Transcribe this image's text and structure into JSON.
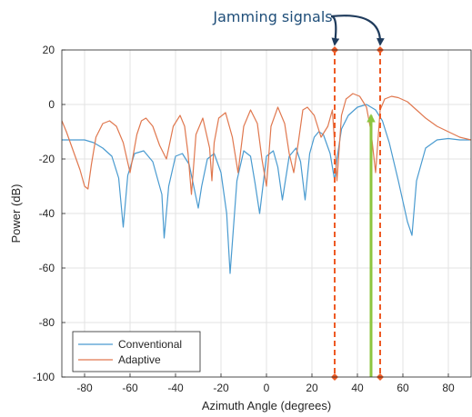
{
  "chart_data": {
    "type": "line",
    "title": "",
    "xlabel": "Azimuth Angle (degrees)",
    "ylabel": "Power (dB)",
    "xlim": [
      -90,
      90
    ],
    "ylim": [
      -100,
      20
    ],
    "xticks": [
      -80,
      -60,
      -40,
      -20,
      0,
      20,
      40,
      60,
      80
    ],
    "yticks": [
      -100,
      -80,
      -60,
      -40,
      -20,
      0,
      20
    ],
    "grid": true,
    "legend": {
      "placement": "bottom-left"
    },
    "series": [
      {
        "name": "Conventional",
        "color": "#4a9bd0",
        "x": [
          -90,
          -80,
          -76,
          -72,
          -68,
          -65,
          -63,
          -61,
          -58,
          -54,
          -50,
          -46,
          -45,
          -43,
          -40,
          -37,
          -34,
          -31,
          -30,
          -28.5,
          -26,
          -23,
          -20,
          -17.5,
          -16,
          -13,
          -10,
          -7,
          -5,
          -3,
          0,
          3,
          5,
          7,
          10,
          13,
          15,
          17,
          19,
          21,
          23,
          25,
          28,
          30,
          31,
          33,
          36,
          40,
          44,
          46,
          48,
          51,
          54,
          58,
          62,
          64,
          66,
          70,
          75,
          80,
          85,
          90
        ],
        "y": [
          -13,
          -13,
          -14,
          -16,
          -19,
          -27,
          -45,
          -26,
          -18,
          -17,
          -21,
          -33,
          -49,
          -30,
          -19,
          -18,
          -22,
          -34,
          -38,
          -30,
          -20,
          -18,
          -25,
          -40,
          -62,
          -28,
          -17,
          -19,
          -29,
          -40,
          -19,
          -17,
          -23,
          -35,
          -19,
          -16,
          -21,
          -35,
          -18,
          -12,
          -10,
          -11,
          -18,
          -28,
          -20,
          -9,
          -4,
          -1,
          0,
          -1,
          -2,
          -6,
          -14,
          -28,
          -43,
          -48,
          -28,
          -16,
          -13,
          -12.5,
          -13,
          -13
        ]
      },
      {
        "name": "Adaptive",
        "color": "#e0784f",
        "x": [
          -90,
          -88,
          -85,
          -82,
          -80,
          -78.5,
          -77,
          -75,
          -72,
          -69,
          -66,
          -63,
          -60,
          -57,
          -55,
          -53,
          -50,
          -47,
          -44,
          -41,
          -38,
          -36,
          -34.5,
          -33,
          -31,
          -28,
          -25,
          -24,
          -23,
          -21,
          -18,
          -15,
          -12.5,
          -10,
          -7,
          -4,
          -2,
          0,
          2,
          5,
          8,
          10,
          12,
          14,
          16,
          18,
          21,
          24,
          27,
          29,
          31,
          33,
          35,
          38,
          41,
          44,
          46,
          48,
          50,
          52,
          55,
          58,
          62,
          66,
          70,
          75,
          80,
          85,
          90
        ],
        "y": [
          -6,
          -10,
          -17,
          -24,
          -30,
          -31,
          -22,
          -12,
          -7,
          -6,
          -8,
          -14,
          -25,
          -11,
          -6,
          -5,
          -8,
          -15,
          -20,
          -8,
          -4,
          -8,
          -18,
          -33,
          -11,
          -5,
          -16,
          -28,
          -14,
          -5,
          -3,
          -12,
          -25,
          -8,
          -2,
          -7,
          -20,
          -30,
          -8,
          -1,
          -7,
          -18,
          -25,
          -14,
          -2,
          -1,
          -4,
          -12,
          -8,
          -2,
          -28,
          -4,
          2,
          4,
          3,
          -1,
          -10,
          -25,
          -2,
          2,
          3,
          2.5,
          1,
          -2,
          -5,
          -8,
          -10,
          -12,
          -13
        ]
      }
    ],
    "annotations": {
      "jamming_label": "Jamming signals",
      "jammer_angles": [
        30,
        50
      ],
      "jammer_color": "#ee5a24",
      "target_angle": 46,
      "target_color": "#8cc63f",
      "target_top_db": -4
    }
  }
}
